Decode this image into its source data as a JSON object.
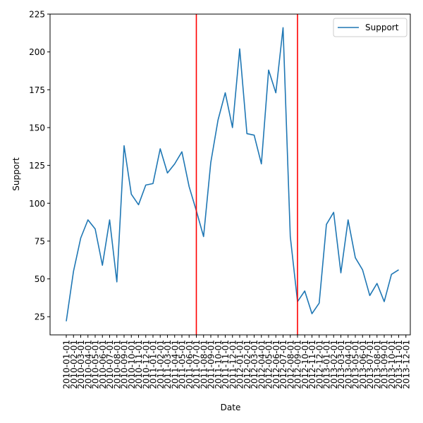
{
  "chart_data": {
    "type": "line",
    "title": "",
    "xlabel": "Date",
    "ylabel": "Support",
    "ylim": [
      13,
      225
    ],
    "yticks": [
      25,
      50,
      75,
      100,
      125,
      150,
      175,
      200,
      225
    ],
    "x": [
      "2010-01-01",
      "2010-02-01",
      "2010-03-01",
      "2010-04-01",
      "2010-05-01",
      "2010-06-01",
      "2010-07-01",
      "2010-08-01",
      "2010-09-01",
      "2010-10-01",
      "2010-11-01",
      "2010-12-01",
      "2011-01-01",
      "2011-02-01",
      "2011-03-01",
      "2011-04-01",
      "2011-05-01",
      "2011-06-01",
      "2011-07-01",
      "2011-08-01",
      "2011-09-01",
      "2011-10-01",
      "2011-11-01",
      "2011-12-01",
      "2012-01-01",
      "2012-02-01",
      "2012-03-01",
      "2012-04-01",
      "2012-05-01",
      "2012-06-01",
      "2012-07-01",
      "2012-08-01",
      "2012-09-01",
      "2012-10-01",
      "2012-11-01",
      "2012-12-01",
      "2013-01-01",
      "2013-02-01",
      "2013-03-01",
      "2013-04-01",
      "2013-05-01",
      "2013-06-01",
      "2013-07-01",
      "2013-08-01",
      "2013-09-01",
      "2013-10-01",
      "2013-11-01",
      "2013-12-01"
    ],
    "series": [
      {
        "name": "Support",
        "color": "#1f77b4",
        "values": [
          22,
          55,
          77,
          89,
          83,
          59,
          89,
          48,
          138,
          106,
          99,
          112,
          113,
          136,
          120,
          126,
          134,
          111,
          95,
          78,
          127,
          155,
          173,
          150,
          202,
          146,
          145,
          126,
          188,
          173,
          216,
          78,
          35,
          42,
          27,
          34,
          86,
          94,
          54,
          89,
          64,
          56,
          39,
          47,
          35,
          53,
          56,
          null
        ]
      }
    ],
    "vlines": [
      {
        "x": "2011-07-01",
        "color": "#ff0000"
      },
      {
        "x": "2012-09-01",
        "color": "#ff0000"
      }
    ],
    "legend_position": "top-right",
    "grid": false
  }
}
